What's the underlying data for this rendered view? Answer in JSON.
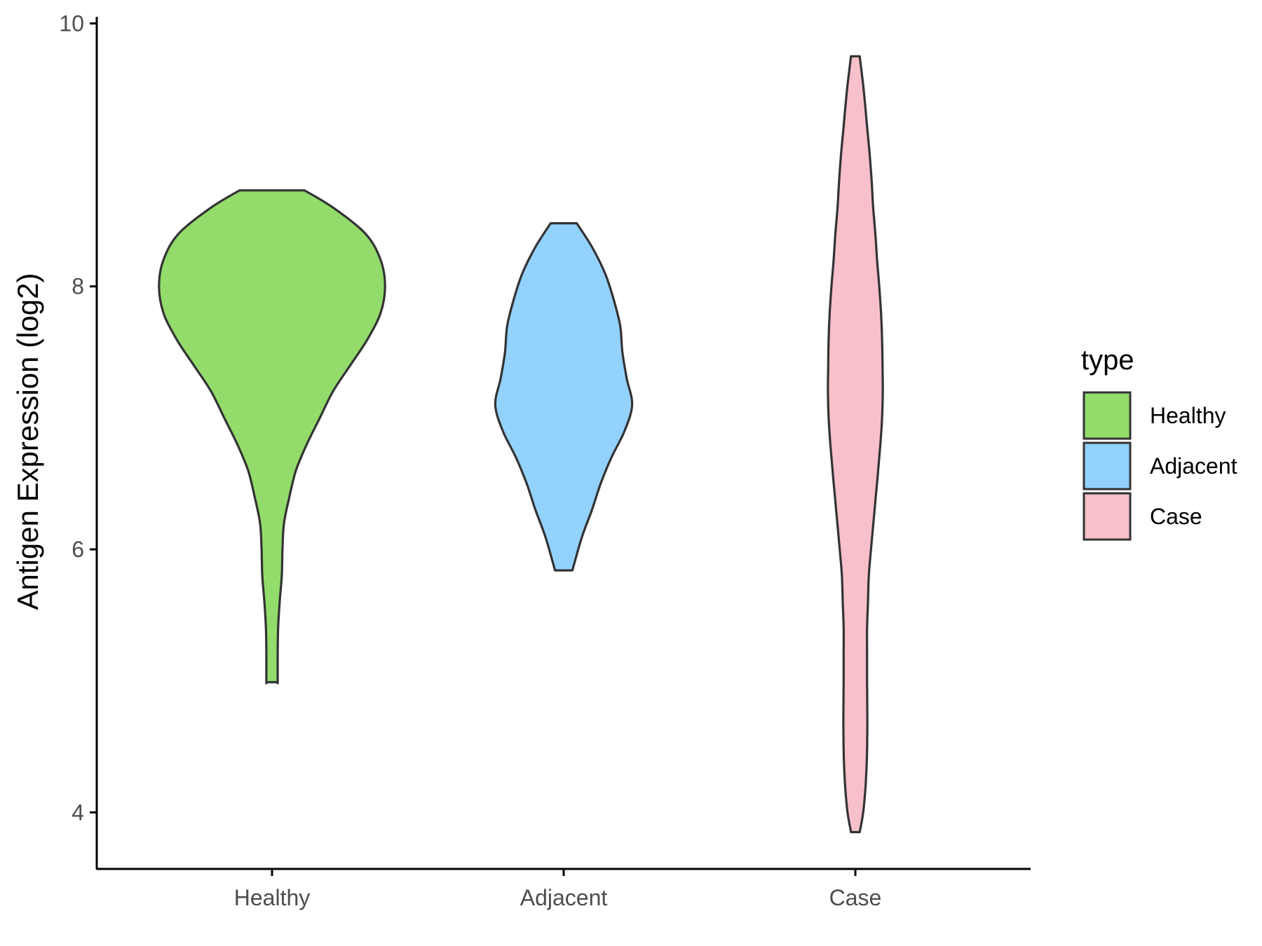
{
  "chart_data": {
    "type": "violin",
    "ylabel": "Antigen Expression (log2)",
    "xlabel": "",
    "ylim": [
      3.57,
      10.05
    ],
    "yticks": [
      4,
      6,
      8,
      10
    ],
    "categories": [
      "Healthy",
      "Adjacent",
      "Case"
    ],
    "legend": {
      "title": "type",
      "position": "right",
      "entries": [
        "Healthy",
        "Adjacent",
        "Case"
      ]
    },
    "grid": false,
    "series": [
      {
        "name": "Healthy",
        "color": "#93DC6B",
        "min": 4.99,
        "max": 8.73,
        "density": [
          [
            8.73,
            0.15
          ],
          [
            8.6,
            0.28
          ],
          [
            8.4,
            0.43
          ],
          [
            8.2,
            0.5
          ],
          [
            8.0,
            0.52
          ],
          [
            7.8,
            0.5
          ],
          [
            7.6,
            0.44
          ],
          [
            7.4,
            0.36
          ],
          [
            7.2,
            0.28
          ],
          [
            7.0,
            0.22
          ],
          [
            6.8,
            0.16
          ],
          [
            6.6,
            0.11
          ],
          [
            6.4,
            0.08
          ],
          [
            6.2,
            0.055
          ],
          [
            6.0,
            0.048
          ],
          [
            5.8,
            0.045
          ],
          [
            5.6,
            0.035
          ],
          [
            5.4,
            0.028
          ],
          [
            5.2,
            0.026
          ],
          [
            5.0,
            0.026
          ],
          [
            4.99,
            0.026
          ]
        ]
      },
      {
        "name": "Adjacent",
        "color": "#93D2FD",
        "min": 5.84,
        "max": 8.48,
        "density": [
          [
            8.48,
            0.06
          ],
          [
            8.3,
            0.13
          ],
          [
            8.1,
            0.19
          ],
          [
            7.9,
            0.23
          ],
          [
            7.7,
            0.26
          ],
          [
            7.5,
            0.27
          ],
          [
            7.3,
            0.29
          ],
          [
            7.1,
            0.315
          ],
          [
            6.9,
            0.28
          ],
          [
            6.7,
            0.22
          ],
          [
            6.5,
            0.17
          ],
          [
            6.3,
            0.13
          ],
          [
            6.1,
            0.085
          ],
          [
            5.9,
            0.05
          ],
          [
            5.84,
            0.04
          ]
        ]
      },
      {
        "name": "Case",
        "color": "#F7C0CB",
        "min": 3.85,
        "max": 9.75,
        "density": [
          [
            9.75,
            0.02
          ],
          [
            9.5,
            0.038
          ],
          [
            9.2,
            0.055
          ],
          [
            9.0,
            0.066
          ],
          [
            8.8,
            0.075
          ],
          [
            8.6,
            0.082
          ],
          [
            8.4,
            0.092
          ],
          [
            8.2,
            0.1
          ],
          [
            8.0,
            0.11
          ],
          [
            7.8,
            0.118
          ],
          [
            7.6,
            0.123
          ],
          [
            7.4,
            0.125
          ],
          [
            7.2,
            0.126
          ],
          [
            7.0,
            0.123
          ],
          [
            6.8,
            0.115
          ],
          [
            6.6,
            0.105
          ],
          [
            6.4,
            0.094
          ],
          [
            6.2,
            0.083
          ],
          [
            6.0,
            0.072
          ],
          [
            5.8,
            0.062
          ],
          [
            5.6,
            0.058
          ],
          [
            5.4,
            0.054
          ],
          [
            5.2,
            0.054
          ],
          [
            5.0,
            0.054
          ],
          [
            4.8,
            0.055
          ],
          [
            4.6,
            0.055
          ],
          [
            4.4,
            0.053
          ],
          [
            4.2,
            0.047
          ],
          [
            4.0,
            0.036
          ],
          [
            3.85,
            0.02
          ]
        ]
      }
    ]
  }
}
